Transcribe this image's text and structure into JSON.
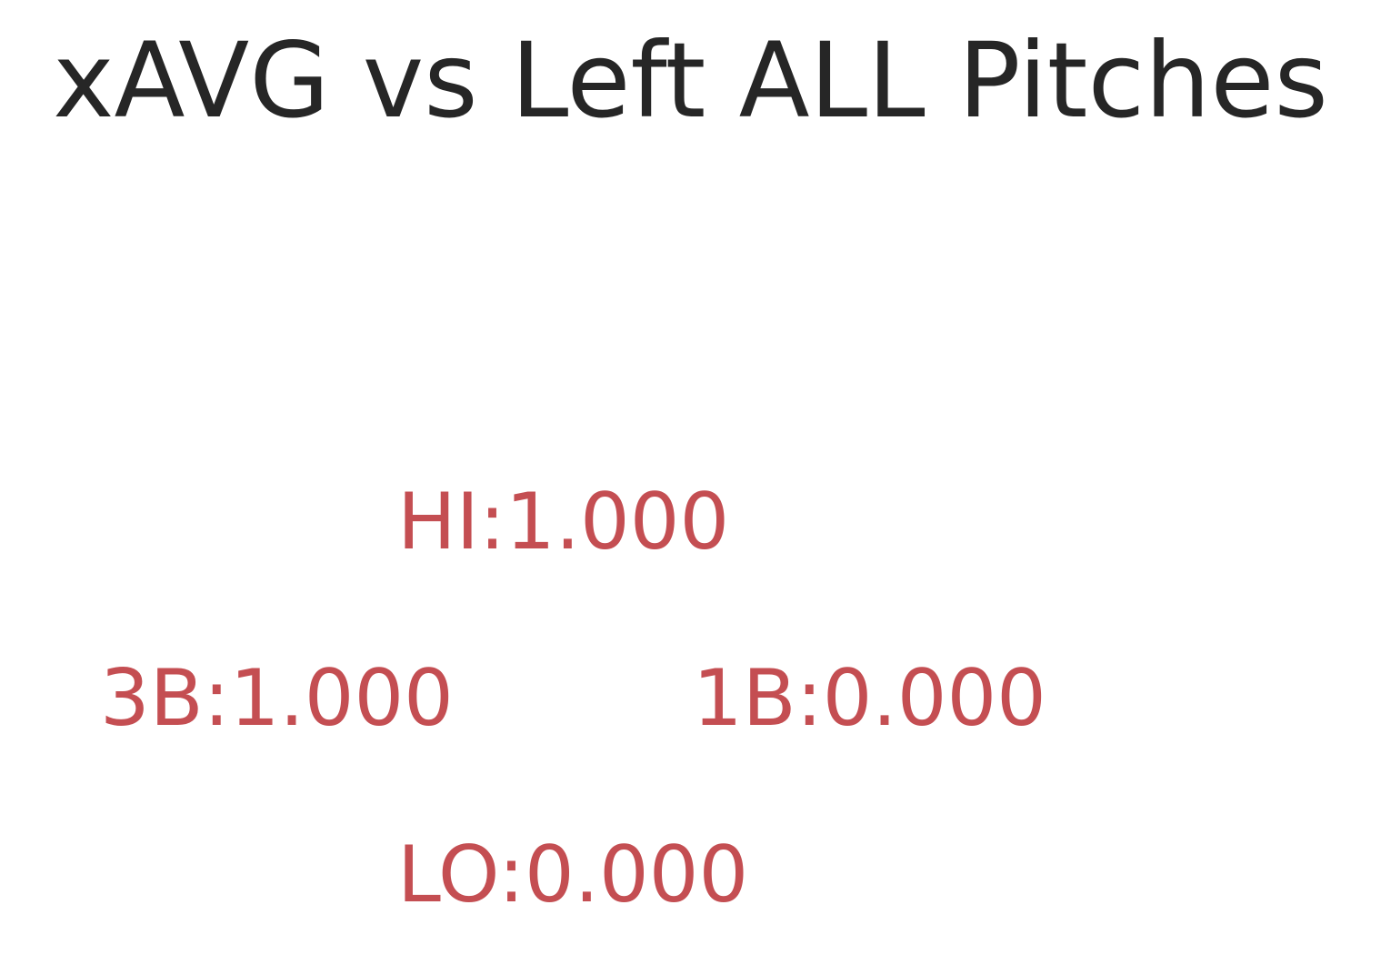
{
  "chart_data": {
    "type": "table",
    "title": "xAVG vs Left ALL Pitches",
    "label_color": "#c44e52",
    "title_color": "#262626",
    "zones": [
      {
        "key": "hi",
        "name": "HI",
        "value": "1.000",
        "text": "HI:1.000"
      },
      {
        "key": "3b",
        "name": "3B",
        "value": "1.000",
        "text": "3B:1.000"
      },
      {
        "key": "1b",
        "name": "1B",
        "value": "0.000",
        "text": "1B:0.000"
      },
      {
        "key": "lo",
        "name": "LO",
        "value": "0.000",
        "text": "LO:0.000"
      }
    ]
  }
}
